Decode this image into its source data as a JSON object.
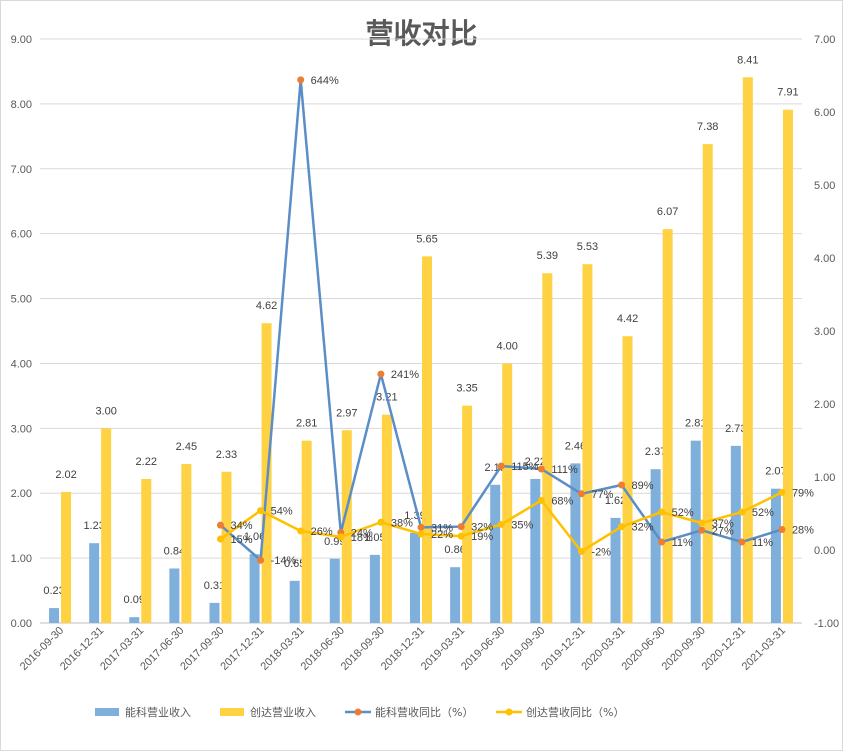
{
  "chart_data": {
    "type": "bar",
    "title": "营收对比",
    "categories": [
      "2016-09-30",
      "2016-12-31",
      "2017-03-31",
      "2017-06-30",
      "2017-09-30",
      "2017-12-31",
      "2018-03-31",
      "2018-06-30",
      "2018-09-30",
      "2018-12-31",
      "2019-03-31",
      "2019-06-30",
      "2019-09-30",
      "2019-12-31",
      "2020-03-31",
      "2020-06-30",
      "2020-09-30",
      "2020-12-31",
      "2021-03-31"
    ],
    "ylim": [
      0,
      9
    ],
    "y2lim": [
      -1,
      7
    ],
    "yticks": [
      "0.00",
      "1.00",
      "2.00",
      "3.00",
      "4.00",
      "5.00",
      "6.00",
      "7.00",
      "8.00",
      "9.00"
    ],
    "y2ticks": [
      "-1.00",
      "0.00",
      "1.00",
      "2.00",
      "3.00",
      "4.00",
      "5.00",
      "6.00",
      "7.00"
    ],
    "grid": true,
    "legend_position": "bottom",
    "series": [
      {
        "name": "能科营业收入",
        "kind": "bar",
        "axis": "left",
        "color": "#7fb0dc",
        "values": [
          0.23,
          1.23,
          0.09,
          0.84,
          0.31,
          1.06,
          0.65,
          0.99,
          1.05,
          1.39,
          0.86,
          2.13,
          2.22,
          2.46,
          1.62,
          2.37,
          2.81,
          2.73,
          2.07
        ],
        "labels": [
          "0.23",
          "1.23",
          "0.09",
          "0.84",
          "0.31",
          "1.06",
          "0.65",
          "0.99",
          "1.05",
          "1.39",
          "0.86",
          "2.13",
          "2.22",
          "2.46",
          "1.62",
          "2.37",
          "2.81",
          "2.73",
          "2.07"
        ]
      },
      {
        "name": "创达营业收入",
        "kind": "bar",
        "axis": "left",
        "color": "#ffd243",
        "values": [
          2.02,
          3.0,
          2.22,
          2.45,
          2.33,
          4.62,
          2.81,
          2.97,
          3.21,
          5.65,
          3.35,
          4.0,
          5.39,
          5.53,
          4.42,
          6.07,
          7.38,
          8.41,
          7.91
        ],
        "labels": [
          "2.02",
          "3.00",
          "2.22",
          "2.45",
          "2.33",
          "4.62",
          "2.81",
          "2.97",
          "3.21",
          "5.65",
          "3.35",
          "4.00",
          "5.39",
          "5.53",
          "4.42",
          "6.07",
          "7.38",
          "8.41",
          "7.91"
        ]
      },
      {
        "name": "能科营收同比（%）",
        "kind": "line",
        "axis": "right",
        "color": "#5b8ec6",
        "marker": "#ed7d31",
        "values": [
          null,
          null,
          null,
          null,
          0.34,
          -0.14,
          6.44,
          0.24,
          2.41,
          0.31,
          0.32,
          1.15,
          1.11,
          0.77,
          0.89,
          0.11,
          0.27,
          0.11,
          0.28
        ],
        "labels": [
          "",
          "",
          "",
          "",
          "34%",
          "-14%",
          "644%",
          "24%",
          "241%",
          "31%",
          "32%",
          "115%",
          "111%",
          "77%",
          "89%",
          "11%",
          "27%",
          "11%",
          "28%"
        ]
      },
      {
        "name": "创达营收同比（%）",
        "kind": "line",
        "axis": "right",
        "color": "#ffc000",
        "marker": "#ffc000",
        "values": [
          null,
          null,
          null,
          null,
          0.15,
          0.54,
          0.26,
          0.18,
          0.38,
          0.22,
          0.19,
          0.35,
          0.68,
          -0.02,
          0.32,
          0.52,
          0.37,
          0.52,
          0.79
        ],
        "labels": [
          "",
          "",
          "",
          "",
          "15%",
          "54%",
          "26%",
          "18%",
          "38%",
          "22%",
          "19%",
          "35%",
          "68%",
          "-2%",
          "32%",
          "52%",
          "37%",
          "52%",
          "79%"
        ]
      }
    ]
  }
}
